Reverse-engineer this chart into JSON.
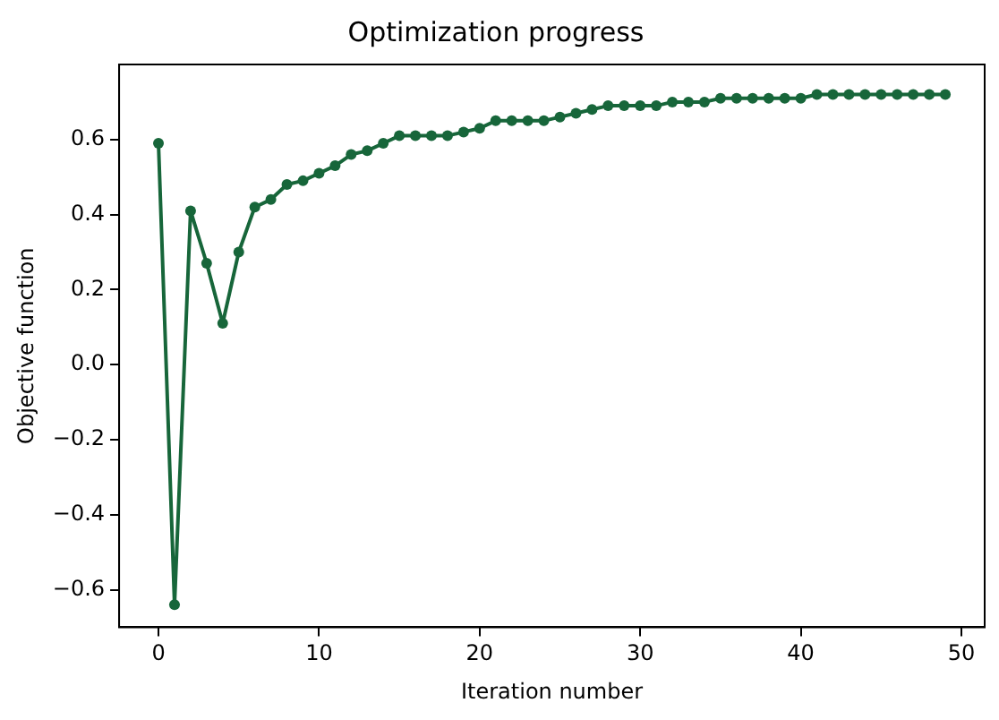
{
  "chart_data": {
    "type": "line",
    "title": "Optimization progress",
    "xlabel": "Iteration number",
    "ylabel": "Objective function",
    "x": [
      0,
      1,
      2,
      3,
      4,
      5,
      6,
      7,
      8,
      9,
      10,
      11,
      12,
      13,
      14,
      15,
      16,
      17,
      18,
      19,
      20,
      21,
      22,
      23,
      24,
      25,
      26,
      27,
      28,
      29,
      30,
      31,
      32,
      33,
      34,
      35,
      36,
      37,
      38,
      39,
      40,
      41,
      42,
      43,
      44,
      45,
      46,
      47,
      48,
      49
    ],
    "series": [
      {
        "color": "#17663a",
        "values": [
          0.59,
          -0.64,
          0.41,
          0.27,
          0.11,
          0.3,
          0.42,
          0.44,
          0.48,
          0.49,
          0.51,
          0.53,
          0.56,
          0.57,
          0.59,
          0.61,
          0.61,
          0.61,
          0.61,
          0.62,
          0.63,
          0.65,
          0.65,
          0.65,
          0.65,
          0.66,
          0.67,
          0.68,
          0.69,
          0.69,
          0.69,
          0.69,
          0.7,
          0.7,
          0.7,
          0.71,
          0.71,
          0.71,
          0.71,
          0.71,
          0.71,
          0.72,
          0.72,
          0.72,
          0.72,
          0.72,
          0.72,
          0.72,
          0.72,
          0.72
        ]
      }
    ],
    "xlim": [
      -2.45,
      51.45
    ],
    "xticks": [
      0,
      10,
      20,
      30,
      40,
      50
    ],
    "ylim": [
      -0.7,
      0.8
    ],
    "yticks": [
      {
        "value": -0.6,
        "label": "−0.6"
      },
      {
        "value": -0.4,
        "label": "−0.4"
      },
      {
        "value": -0.2,
        "label": "−0.2"
      },
      {
        "value": 0,
        "label": "0.0"
      },
      {
        "value": 0.2,
        "label": "0.2"
      },
      {
        "value": 0.4,
        "label": "0.4"
      },
      {
        "value": 0.6,
        "label": "0.6"
      }
    ],
    "grid": false,
    "legend": false,
    "marker": "circle",
    "line_style": "solid"
  }
}
